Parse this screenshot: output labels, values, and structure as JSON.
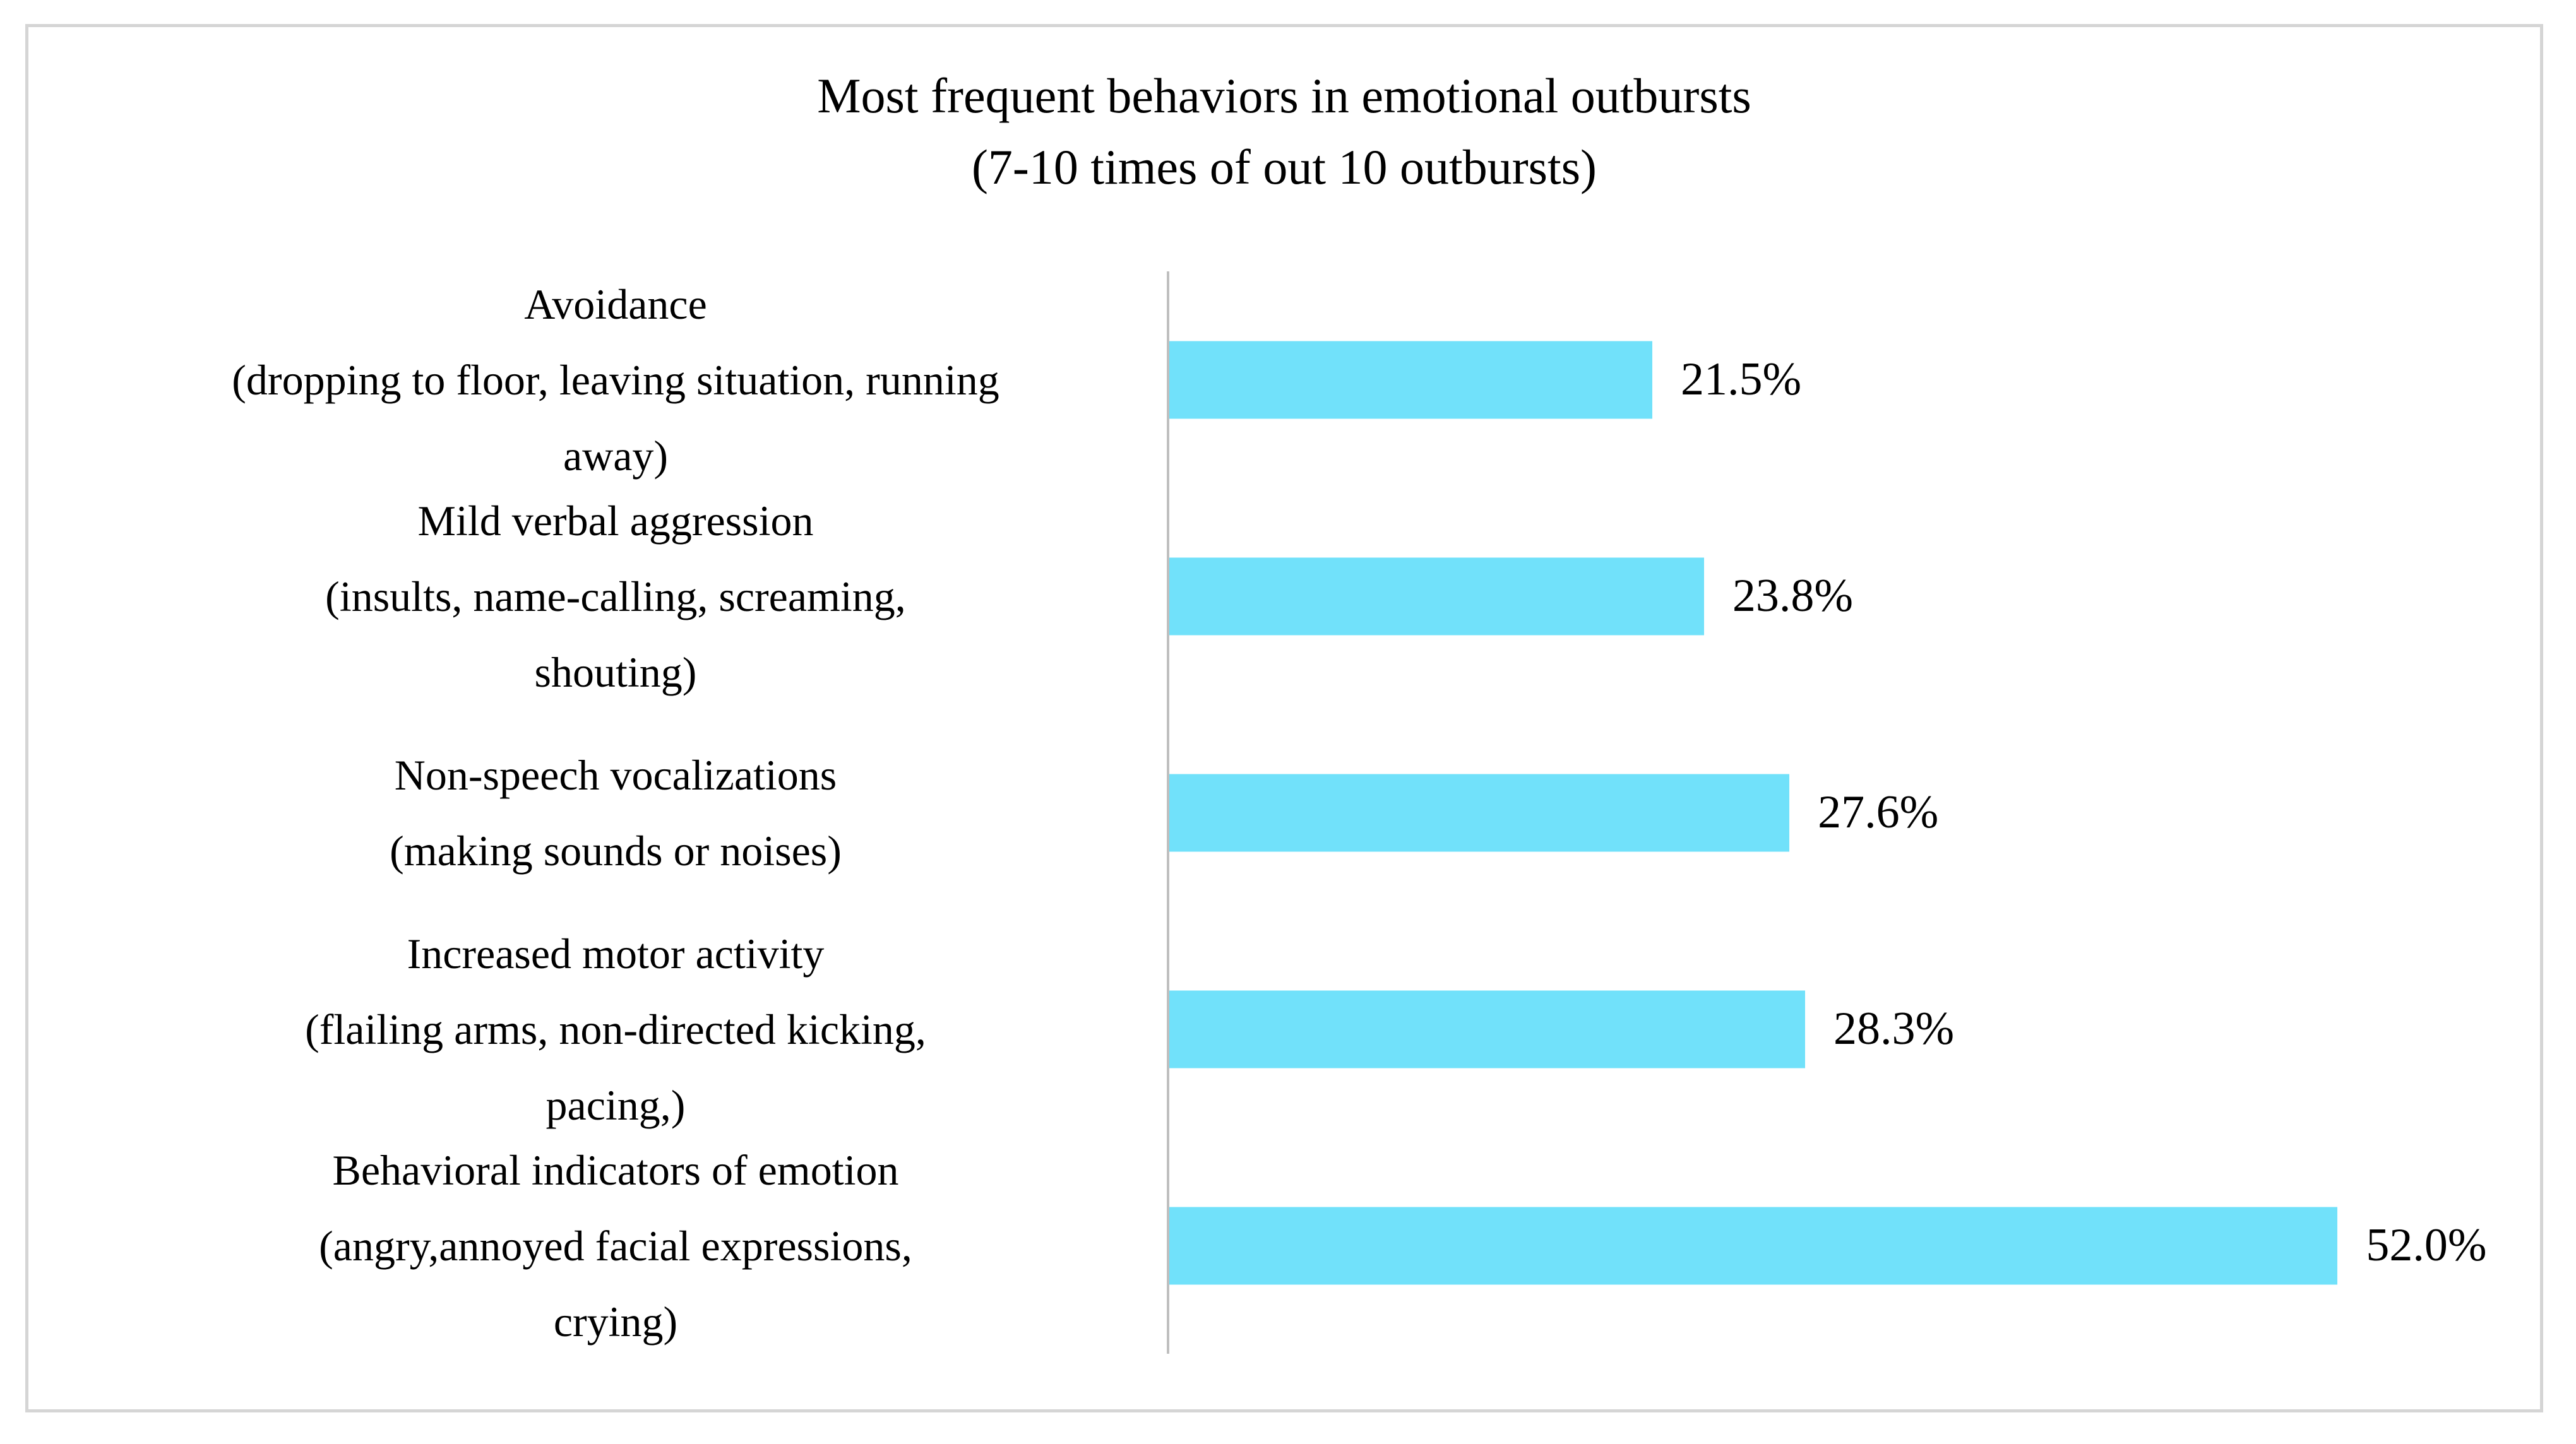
{
  "figure": {
    "background": "#FFFFFF",
    "border_color": "#D5D5D5"
  },
  "chart_data": {
    "type": "bar",
    "orientation": "horizontal",
    "title": "Most frequent behaviors in emotional outbursts",
    "subtitle": "(7-10 times of out 10 outbursts)",
    "categories": [
      "Avoidance (dropping to floor, leaving situation, running away)",
      "Mild verbal aggression (insults, name-calling, screaming, shouting)",
      "Non-speech vocalizations (making sounds or noises)",
      "Increased motor activity (flailing arms, non-directed kicking, pacing,)",
      "Behavioral indicators of emotion (angry,annoyed facial expressions, crying)"
    ],
    "category_display_lines": [
      [
        "Avoidance",
        "(dropping to floor, leaving situation, running",
        "away)"
      ],
      [
        "Mild verbal aggression",
        "(insults, name-calling, screaming,",
        "shouting)"
      ],
      [
        "Non-speech vocalizations",
        "(making sounds or noises)"
      ],
      [
        "Increased motor activity",
        "(flailing arms, non-directed kicking,",
        "pacing,)"
      ],
      [
        "Behavioral indicators of emotion",
        "(angry,annoyed facial expressions,",
        "crying)"
      ]
    ],
    "values": [
      21.5,
      23.8,
      27.6,
      28.3,
      52.0
    ],
    "value_labels": [
      "21.5%",
      "23.8%",
      "27.6%",
      "28.3%",
      "52.0%"
    ],
    "xlim": [
      0,
      60
    ],
    "grid": false,
    "legend_position": "none",
    "bar_color": "#71E1FA",
    "axis_line_color": "#BFBFBF",
    "text_color": "#000000"
  }
}
